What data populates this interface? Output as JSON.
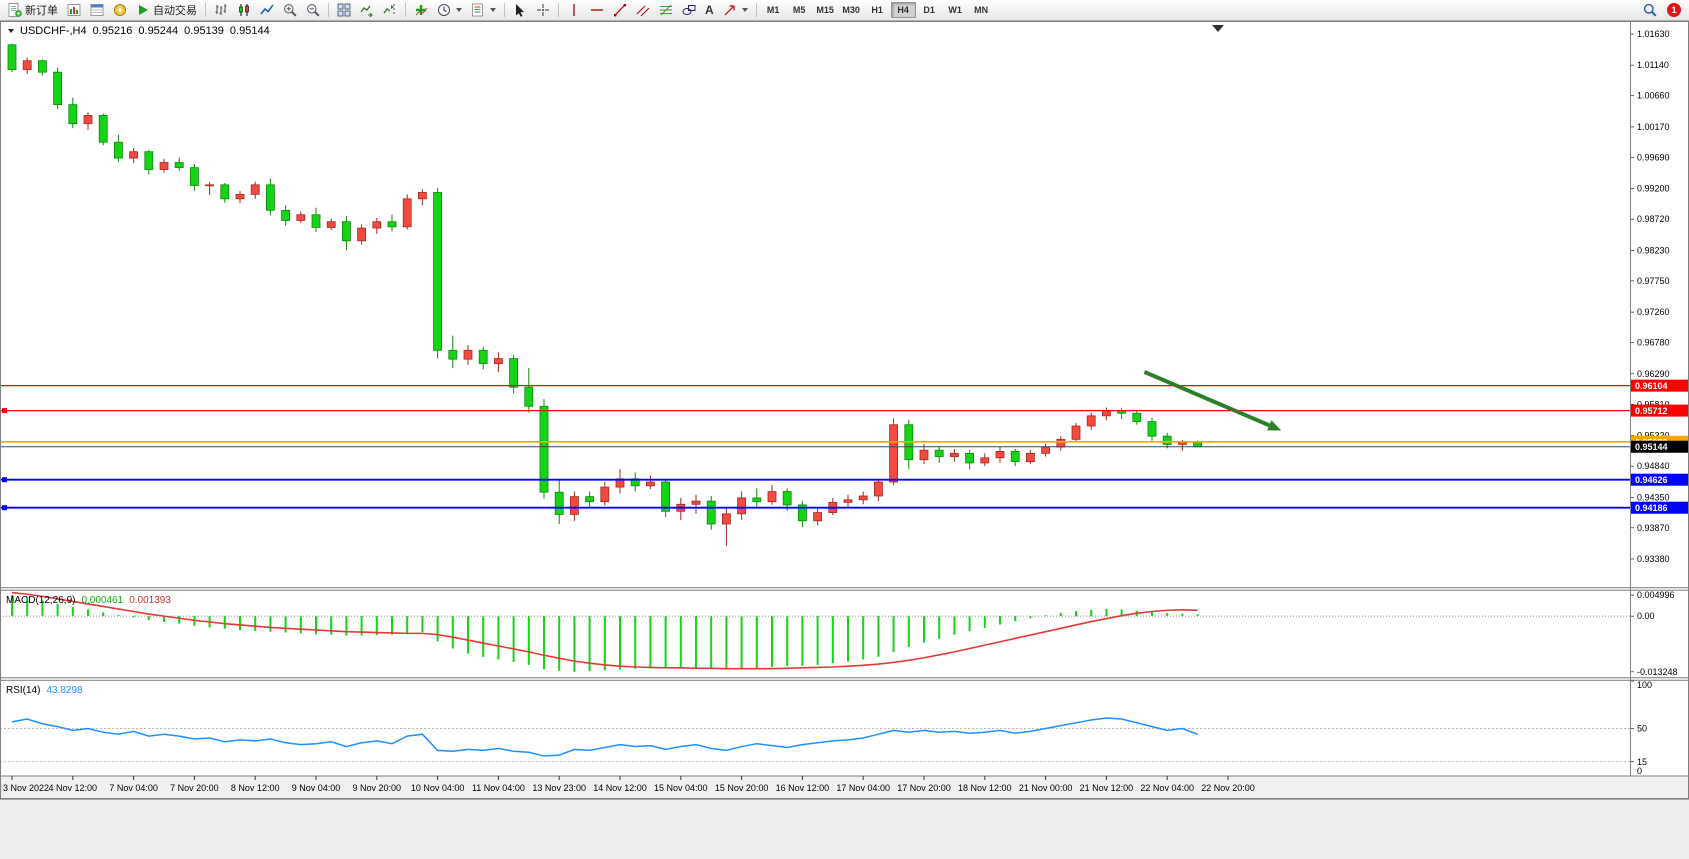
{
  "toolbar": {
    "new_order_label": "新订单",
    "auto_trading_label": "自动交易",
    "text_tool_label": "A",
    "timeframes": [
      "M1",
      "M5",
      "M15",
      "M30",
      "H1",
      "H4",
      "D1",
      "W1",
      "MN"
    ],
    "active_timeframe": "H4",
    "notification_count": "1"
  },
  "chart": {
    "symbol_line": "USDCHF-,H4",
    "ohlc": {
      "open": "0.95216",
      "high": "0.95244",
      "low": "0.95139",
      "close": "0.95144"
    }
  },
  "indicators": {
    "macd": {
      "name": "MACD(12,26,9)",
      "value": "0.000461",
      "signal": "0.001393"
    },
    "rsi": {
      "name": "RSI(14)",
      "value": "43.8298"
    }
  },
  "colors": {
    "bull": "#f04a41",
    "bull_stroke": "#a82820",
    "bear": "#16d316",
    "bear_stroke": "#0b8a0b",
    "macd_hist": "#16d316",
    "macd_signal": "#e53935",
    "rsi_line": "#1e90ff",
    "arrow": "#2e7d27",
    "hline_red": "#ff0000",
    "hline_orange": "#ffa500",
    "hline_blue": "#0000ff"
  },
  "chart_data": [
    {
      "type": "candlestick",
      "title": "USDCHF- H4",
      "ylim": [
        0.9338,
        1.0163
      ],
      "price_ticks": [
        "1.01630",
        "1.01140",
        "1.00660",
        "1.00170",
        "0.99690",
        "0.99200",
        "0.98720",
        "0.98230",
        "0.97750",
        "0.97260",
        "0.96780",
        "0.96290",
        "0.95810",
        "0.95320",
        "0.94840",
        "0.94350",
        "0.93870",
        "0.93380"
      ],
      "time_ticks": [
        {
          "label": "3 Nov 2022",
          "bar": 0
        },
        {
          "label": "4 Nov 12:00",
          "bar": 4
        },
        {
          "label": "7 Nov 04:00",
          "bar": 8
        },
        {
          "label": "7 Nov 20:00",
          "bar": 12
        },
        {
          "label": "8 Nov 12:00",
          "bar": 16
        },
        {
          "label": "9 Nov 04:00",
          "bar": 20
        },
        {
          "label": "9 Nov 20:00",
          "bar": 24
        },
        {
          "label": "10 Nov 04:00",
          "bar": 28
        },
        {
          "label": "11 Nov 04:00",
          "bar": 32
        },
        {
          "label": "13 Nov 23:00",
          "bar": 36
        },
        {
          "label": "14 Nov 12:00",
          "bar": 40
        },
        {
          "label": "15 Nov 04:00",
          "bar": 44
        },
        {
          "label": "15 Nov 20:00",
          "bar": 48
        },
        {
          "label": "16 Nov 12:00",
          "bar": 52
        },
        {
          "label": "17 Nov 04:00",
          "bar": 56
        },
        {
          "label": "17 Nov 20:00",
          "bar": 60
        },
        {
          "label": "18 Nov 12:00",
          "bar": 64
        },
        {
          "label": "21 Nov 00:00",
          "bar": 68
        },
        {
          "label": "21 Nov 12:00",
          "bar": 72
        },
        {
          "label": "22 Nov 04:00",
          "bar": 76
        },
        {
          "label": "22 Nov 20:00",
          "bar": 80
        }
      ],
      "candles": [
        [
          1.0146,
          1.0148,
          1.0103,
          1.0107
        ],
        [
          1.0107,
          1.0126,
          1.01,
          1.0121
        ],
        [
          1.0121,
          1.0123,
          1.0098,
          1.0103
        ],
        [
          1.0103,
          1.011,
          1.0045,
          1.0052
        ],
        [
          1.0052,
          1.0063,
          1.0015,
          1.0022
        ],
        [
          1.0022,
          1.004,
          1.0012,
          1.0035
        ],
        [
          1.0035,
          1.0038,
          0.9988,
          0.9993
        ],
        [
          0.9993,
          1.0005,
          0.9962,
          0.9968
        ],
        [
          0.9968,
          0.9984,
          0.996,
          0.9978
        ],
        [
          0.9978,
          0.9981,
          0.9942,
          0.995
        ],
        [
          0.995,
          0.9967,
          0.9945,
          0.9961
        ],
        [
          0.9961,
          0.9969,
          0.9948,
          0.9953
        ],
        [
          0.9953,
          0.9959,
          0.9917,
          0.9925
        ],
        [
          0.9925,
          0.9931,
          0.991,
          0.9926
        ],
        [
          0.9926,
          0.9929,
          0.9898,
          0.9904
        ],
        [
          0.9904,
          0.9916,
          0.9897,
          0.9911
        ],
        [
          0.9911,
          0.9931,
          0.9904,
          0.9926
        ],
        [
          0.9926,
          0.9936,
          0.9878,
          0.9886
        ],
        [
          0.9886,
          0.9894,
          0.9862,
          0.987
        ],
        [
          0.987,
          0.9884,
          0.9866,
          0.9879
        ],
        [
          0.9879,
          0.989,
          0.9852,
          0.9859
        ],
        [
          0.9859,
          0.9873,
          0.9855,
          0.9868
        ],
        [
          0.9868,
          0.9877,
          0.9823,
          0.9838
        ],
        [
          0.9838,
          0.9864,
          0.9832,
          0.9858
        ],
        [
          0.9858,
          0.9874,
          0.9849,
          0.9868
        ],
        [
          0.9868,
          0.9879,
          0.9853,
          0.986
        ],
        [
          0.986,
          0.9911,
          0.9856,
          0.9904
        ],
        [
          0.9904,
          0.9919,
          0.9894,
          0.9914
        ],
        [
          0.9914,
          0.9921,
          0.9653,
          0.9666
        ],
        [
          0.9666,
          0.9689,
          0.9638,
          0.9652
        ],
        [
          0.9652,
          0.9674,
          0.9643,
          0.9666
        ],
        [
          0.9666,
          0.9671,
          0.9636,
          0.9645
        ],
        [
          0.9645,
          0.9663,
          0.9632,
          0.9653
        ],
        [
          0.9653,
          0.9659,
          0.9598,
          0.9608
        ],
        [
          0.9608,
          0.9638,
          0.9568,
          0.9578
        ],
        [
          0.9578,
          0.9589,
          0.9433,
          0.9443
        ],
        [
          0.9443,
          0.9463,
          0.9393,
          0.9408
        ],
        [
          0.9408,
          0.9444,
          0.9398,
          0.9436
        ],
        [
          0.9436,
          0.9444,
          0.9418,
          0.9428
        ],
        [
          0.9428,
          0.9459,
          0.9422,
          0.9451
        ],
        [
          0.9451,
          0.9479,
          0.9441,
          0.9464
        ],
        [
          0.9464,
          0.9474,
          0.9444,
          0.9453
        ],
        [
          0.9453,
          0.9469,
          0.9448,
          0.9459
        ],
        [
          0.9459,
          0.9464,
          0.9404,
          0.9413
        ],
        [
          0.9413,
          0.9434,
          0.9399,
          0.9424
        ],
        [
          0.9424,
          0.9439,
          0.9409,
          0.9429
        ],
        [
          0.9429,
          0.9437,
          0.9384,
          0.9393
        ],
        [
          0.9393,
          0.9419,
          0.9358,
          0.9409
        ],
        [
          0.9409,
          0.9444,
          0.9399,
          0.9434
        ],
        [
          0.9434,
          0.9449,
          0.9419,
          0.9428
        ],
        [
          0.9428,
          0.9454,
          0.9423,
          0.9444
        ],
        [
          0.9444,
          0.9449,
          0.9414,
          0.9423
        ],
        [
          0.9423,
          0.9429,
          0.9388,
          0.9398
        ],
        [
          0.9398,
          0.9419,
          0.9391,
          0.9411
        ],
        [
          0.9411,
          0.9434,
          0.9407,
          0.9427
        ],
        [
          0.9427,
          0.9439,
          0.9419,
          0.9431
        ],
        [
          0.9431,
          0.9444,
          0.9424,
          0.9437
        ],
        [
          0.9437,
          0.9464,
          0.9429,
          0.9459
        ],
        [
          0.9459,
          0.9559,
          0.9454,
          0.9549
        ],
        [
          0.9549,
          0.9557,
          0.9479,
          0.9494
        ],
        [
          0.9494,
          0.9519,
          0.9487,
          0.9509
        ],
        [
          0.9509,
          0.9514,
          0.9489,
          0.9499
        ],
        [
          0.9499,
          0.9511,
          0.9491,
          0.9504
        ],
        [
          0.9504,
          0.9509,
          0.9479,
          0.9489
        ],
        [
          0.9489,
          0.9504,
          0.9484,
          0.9497
        ],
        [
          0.9497,
          0.9514,
          0.9489,
          0.9507
        ],
        [
          0.9507,
          0.9511,
          0.9484,
          0.9491
        ],
        [
          0.9491,
          0.9509,
          0.9487,
          0.9504
        ],
        [
          0.9504,
          0.9519,
          0.9499,
          0.9514
        ],
        [
          0.9514,
          0.9531,
          0.9508,
          0.9526
        ],
        [
          0.9526,
          0.9552,
          0.9521,
          0.9547
        ],
        [
          0.9547,
          0.9568,
          0.9541,
          0.9563
        ],
        [
          0.9563,
          0.9576,
          0.9556,
          0.9571
        ],
        [
          0.9571,
          0.9575,
          0.9558,
          0.9567
        ],
        [
          0.9567,
          0.9572,
          0.9549,
          0.9554
        ],
        [
          0.9554,
          0.956,
          0.9524,
          0.9531
        ],
        [
          0.9531,
          0.9536,
          0.9512,
          0.9518
        ],
        [
          0.9518,
          0.9525,
          0.9508,
          0.9521
        ],
        [
          0.95216,
          0.95244,
          0.95139,
          0.95144
        ]
      ],
      "hlines": [
        {
          "label": "0.96104",
          "price": 0.96104,
          "color": "#ff0000",
          "width": 1.2,
          "text_color": "#ffffff",
          "handle": false
        },
        {
          "label": "0.95712",
          "price": 0.95712,
          "color": "#ff0000",
          "width": 1.2,
          "text_color": "#ffffff",
          "handle": true
        },
        {
          "label": "0.95222",
          "price": 0.95222,
          "color": "#ffa500",
          "width": 1.6,
          "text_color": "#ffffff",
          "handle": false
        },
        {
          "label": "0.94626",
          "price": 0.94626,
          "color": "#0000ff",
          "width": 1.8,
          "text_color": "#ffffff",
          "handle": true
        },
        {
          "label": "0.94186",
          "price": 0.94186,
          "color": "#0000ff",
          "width": 1.8,
          "text_color": "#ffffff",
          "handle": true
        }
      ],
      "bid": {
        "label": "0.95144",
        "price": 0.95144,
        "line_color": "#444444",
        "bg": "#000000",
        "text_color": "#ffffff"
      },
      "arrow": {
        "start": {
          "bar": 74.5,
          "price": 0.9632
        },
        "end": {
          "bar": 83.5,
          "price": 0.954
        }
      }
    },
    {
      "type": "bar",
      "label": "MACD(12,26,9)",
      "value_display": "0.000461",
      "signal_display": "0.001393",
      "scale_labels": [
        "0.004996",
        "0.00",
        "-0.013248"
      ],
      "ylim": [
        -0.014,
        0.0055
      ],
      "values": [
        0.005,
        0.0044,
        0.0037,
        0.0029,
        0.0022,
        0.0016,
        0.0009,
        0.0003,
        -0.0003,
        -0.0009,
        -0.0014,
        -0.0018,
        -0.0023,
        -0.0027,
        -0.003,
        -0.0033,
        -0.0035,
        -0.0037,
        -0.0039,
        -0.0041,
        -0.0043,
        -0.0044,
        -0.0046,
        -0.0046,
        -0.0045,
        -0.0044,
        -0.0041,
        -0.0038,
        -0.006,
        -0.0077,
        -0.0089,
        -0.0097,
        -0.0103,
        -0.0109,
        -0.0116,
        -0.0126,
        -0.013,
        -0.0132,
        -0.0131,
        -0.0129,
        -0.0127,
        -0.0125,
        -0.0124,
        -0.0124,
        -0.0125,
        -0.0125,
        -0.0126,
        -0.0127,
        -0.0126,
        -0.0124,
        -0.0121,
        -0.0119,
        -0.0118,
        -0.0116,
        -0.0112,
        -0.0108,
        -0.0103,
        -0.0097,
        -0.0085,
        -0.0073,
        -0.0063,
        -0.0054,
        -0.0044,
        -0.0036,
        -0.0028,
        -0.002,
        -0.0012,
        -0.0005,
        0.0002,
        0.0008,
        0.0012,
        0.0015,
        0.0017,
        0.0016,
        0.0013,
        0.0009,
        0.0007,
        0.0006,
        0.000461
      ],
      "signal": [
        0.0056,
        0.0052,
        0.0047,
        0.0041,
        0.0035,
        0.0029,
        0.0023,
        0.0017,
        0.0011,
        0.0005,
        0.0,
        -0.0005,
        -0.001,
        -0.0014,
        -0.0018,
        -0.0021,
        -0.0024,
        -0.0027,
        -0.0029,
        -0.0031,
        -0.0033,
        -0.0035,
        -0.0037,
        -0.0038,
        -0.0039,
        -0.004,
        -0.0041,
        -0.0041,
        -0.0044,
        -0.005,
        -0.0057,
        -0.0064,
        -0.0071,
        -0.0078,
        -0.0085,
        -0.0093,
        -0.01,
        -0.0107,
        -0.0112,
        -0.0116,
        -0.0119,
        -0.0121,
        -0.0122,
        -0.0123,
        -0.0123,
        -0.0124,
        -0.0124,
        -0.0125,
        -0.0125,
        -0.0125,
        -0.0125,
        -0.0124,
        -0.0123,
        -0.0122,
        -0.0121,
        -0.0119,
        -0.0117,
        -0.0114,
        -0.011,
        -0.0105,
        -0.0099,
        -0.0092,
        -0.0085,
        -0.0077,
        -0.0069,
        -0.0061,
        -0.0053,
        -0.0045,
        -0.0037,
        -0.0029,
        -0.0021,
        -0.0013,
        -0.0006,
        0.0001,
        0.0007,
        0.0011,
        0.0014,
        0.0015,
        0.001393
      ]
    },
    {
      "type": "line",
      "label": "RSI(14)",
      "value_display": "43.8298",
      "ylim": [
        0,
        100
      ],
      "levels": [
        100,
        50,
        15,
        0
      ],
      "values": [
        57,
        60,
        55,
        52,
        48,
        50,
        46,
        44,
        47,
        42,
        44,
        42,
        39,
        40,
        36,
        38,
        37,
        39,
        35,
        33,
        34,
        36,
        31,
        35,
        37,
        34,
        42,
        44,
        27,
        26,
        28,
        27,
        29,
        26,
        25,
        21,
        22,
        28,
        27,
        30,
        33,
        31,
        32,
        28,
        31,
        33,
        29,
        27,
        31,
        34,
        32,
        30,
        33,
        35,
        37,
        38,
        40,
        44,
        48,
        46,
        48,
        46,
        47,
        45,
        46,
        48,
        45,
        47,
        50,
        53,
        56,
        59,
        61,
        60,
        56,
        52,
        48,
        50,
        43.8298
      ]
    }
  ]
}
